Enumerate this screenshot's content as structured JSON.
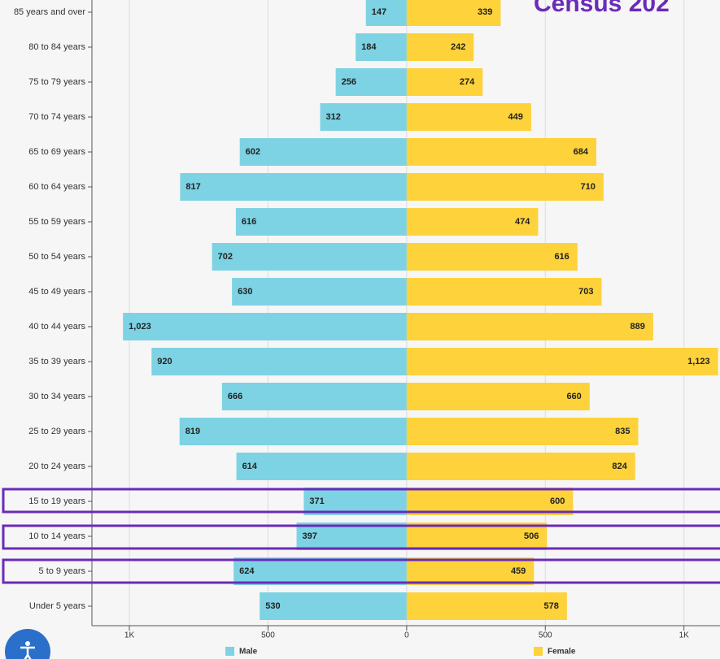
{
  "chart_data": {
    "type": "population-pyramid",
    "title": "Census 202",
    "categories": [
      "85 years and over",
      "80 to 84 years",
      "75 to 79 years",
      "70 to 74 years",
      "65 to 69 years",
      "60 to 64 years",
      "55 to 59 years",
      "50 to 54 years",
      "45 to 49 years",
      "40 to 44 years",
      "35 to 39 years",
      "30 to 34 years",
      "25 to 29 years",
      "20 to 24 years",
      "15 to 19 years",
      "10 to 14 years",
      "5 to 9 years",
      "Under 5 years"
    ],
    "series": [
      {
        "name": "Male",
        "color": "#7dd3e3",
        "values": [
          147,
          184,
          256,
          312,
          602,
          817,
          616,
          702,
          630,
          1023,
          920,
          666,
          819,
          614,
          371,
          397,
          624,
          530
        ],
        "value_labels": [
          null,
          null,
          null,
          null,
          null,
          null,
          null,
          null,
          null,
          "1,023",
          null,
          null,
          null,
          null,
          null,
          null,
          null,
          null
        ]
      },
      {
        "name": "Female",
        "color": "#fdd23b",
        "values": [
          339,
          242,
          274,
          449,
          684,
          710,
          474,
          616,
          703,
          889,
          1123,
          660,
          835,
          824,
          600,
          506,
          459,
          578
        ],
        "value_labels": [
          null,
          null,
          null,
          null,
          null,
          null,
          null,
          null,
          null,
          null,
          "1,123",
          null,
          null,
          null,
          null,
          null,
          null,
          null
        ]
      }
    ],
    "xlim": [
      -1135,
      1130
    ],
    "xticks": [
      {
        "value": -1000,
        "label": "1K"
      },
      {
        "value": -500,
        "label": "500"
      },
      0,
      500,
      {
        "value": 1000,
        "label": "1K"
      }
    ],
    "grid": true
  }
}
